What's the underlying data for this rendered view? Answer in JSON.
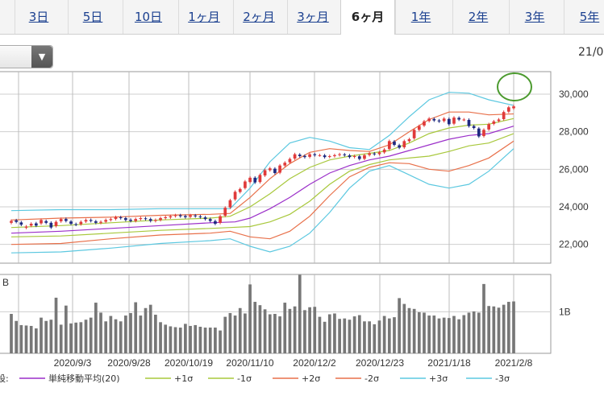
{
  "tabs": [
    {
      "label": "3日"
    },
    {
      "label": "5日"
    },
    {
      "label": "10日"
    },
    {
      "label": "1ヶ月"
    },
    {
      "label": "2ヶ月"
    },
    {
      "label": "3ヶ月"
    },
    {
      "label": "6ヶ月",
      "active": true
    },
    {
      "label": "1年"
    },
    {
      "label": "2年"
    },
    {
      "label": "3年"
    },
    {
      "label": "5年"
    }
  ],
  "date_partial": "21/0",
  "colors": {
    "candle_up": "#e03a3a",
    "candle_down": "#1f2a80",
    "sma": "#9b2fc9",
    "sigma1": "#a8c83c",
    "sigma2": "#e8704a",
    "sigma3": "#5cc8e0",
    "volume": "#777777",
    "annotation_circle": "#4b9a2e"
  },
  "chart_data": {
    "type": "candlestick",
    "price_axis": {
      "ticks": [
        "30,000",
        "28,000",
        "26,000",
        "24,000",
        "22,000"
      ],
      "ylim": [
        21000,
        31200
      ]
    },
    "volume_axis": {
      "title": "B",
      "ticks": [
        "1B"
      ],
      "ylim": [
        0,
        1.9
      ]
    },
    "x_tick_labels": [
      "2020/9/3",
      "2020/9/28",
      "2020/10/19",
      "2020/11/10",
      "2020/12/2",
      "2020/12/23",
      "2021/1/18",
      "2021/2/8"
    ],
    "close": [
      23250,
      23200,
      23050,
      22950,
      23100,
      23000,
      23300,
      23150,
      22900,
      23200,
      23350,
      23250,
      23100,
      23050,
      23200,
      23300,
      23250,
      23150,
      23200,
      23300,
      23350,
      23450,
      23400,
      23300,
      23250,
      23350,
      23400,
      23350,
      23250,
      23300,
      23400,
      23450,
      23500,
      23550,
      23500,
      23450,
      23550,
      23500,
      23450,
      23350,
      23250,
      23100,
      23500,
      23950,
      24350,
      24800,
      24950,
      25350,
      25550,
      25300,
      25700,
      25950,
      26050,
      25800,
      26200,
      26350,
      26550,
      26800,
      26700,
      26650,
      26800,
      26750,
      26750,
      26650,
      26700,
      26750,
      26800,
      26750,
      26650,
      26700,
      26550,
      26750,
      26850,
      26800,
      26900,
      27050,
      27500,
      27300,
      27150,
      27500,
      27600,
      28100,
      28300,
      28550,
      28700,
      28600,
      28550,
      28700,
      28400,
      28750,
      28650,
      28650,
      28300,
      28200,
      27750,
      28100,
      28400,
      28550,
      28650,
      29050,
      29300,
      29350
    ],
    "open_offsets": [
      -100,
      80,
      120,
      -60,
      -100,
      120,
      -180,
      90,
      250,
      -220,
      -120,
      100,
      120,
      30,
      -120,
      -80,
      50,
      80,
      -50,
      -90,
      -50,
      -90,
      40,
      100,
      60,
      -100,
      -50,
      40,
      100,
      -50,
      -100,
      -50,
      -60,
      -40,
      50,
      60,
      -80,
      40,
      40,
      90,
      100,
      140,
      -350,
      -420,
      -380,
      -400,
      -160,
      -350,
      -230,
      250,
      -380,
      -280,
      -100,
      230,
      -380,
      -150,
      -180,
      -230,
      80,
      60,
      -140,
      50,
      0,
      90,
      -40,
      -50,
      -40,
      40,
      90,
      -40,
      140,
      -190,
      -90,
      40,
      -90,
      -150,
      -420,
      180,
      130,
      -330,
      -100,
      -450,
      -200,
      -220,
      -130,
      80,
      50,
      -130,
      280,
      -320,
      90,
      -10,
      330,
      100,
      420,
      -330,
      -280,
      -130,
      -80,
      -380,
      -230,
      -100
    ],
    "volume": [
      0.95,
      0.78,
      0.68,
      0.67,
      0.66,
      0.6,
      0.86,
      0.78,
      0.81,
      1.34,
      0.69,
      1.15,
      0.72,
      0.74,
      0.75,
      0.81,
      0.86,
      1.22,
      0.98,
      0.77,
      0.9,
      0.82,
      0.77,
      0.91,
      0.97,
      1.23,
      0.91,
      1.09,
      1.17,
      0.93,
      0.75,
      0.69,
      0.65,
      0.63,
      0.62,
      0.71,
      0.66,
      0.68,
      0.64,
      0.62,
      0.62,
      0.62,
      0.55,
      0.88,
      0.97,
      0.91,
      1.09,
      0.96,
      1.66,
      1.24,
      1.16,
      1.06,
      0.94,
      0.95,
      0.89,
      1.22,
      1.07,
      1.13,
      1.89,
      1.04,
      1.11,
      1.12,
      0.88,
      0.76,
      0.94,
      0.96,
      0.83,
      0.84,
      0.81,
      0.89,
      0.92,
      0.77,
      0.77,
      0.7,
      0.79,
      0.9,
      0.84,
      0.87,
      1.33,
      1.19,
      1.09,
      1.07,
      0.99,
      0.98,
      0.91,
      0.91,
      0.84,
      0.86,
      0.85,
      0.9,
      0.82,
      0.92,
      0.98,
      1.01,
      0.98,
      1.67,
      1.14,
      1.13,
      1.1,
      1.17,
      1.24,
      1.25
    ],
    "bands": {
      "sma_20": [
        [
          0,
          22600
        ],
        [
          10,
          22700
        ],
        [
          20,
          22850
        ],
        [
          30,
          23000
        ],
        [
          40,
          23150
        ],
        [
          45,
          23200
        ],
        [
          48,
          23400
        ],
        [
          52,
          23900
        ],
        [
          56,
          24500
        ],
        [
          60,
          25200
        ],
        [
          64,
          25800
        ],
        [
          68,
          26200
        ],
        [
          72,
          26500
        ],
        [
          76,
          26700
        ],
        [
          80,
          27000
        ],
        [
          84,
          27300
        ],
        [
          88,
          27600
        ],
        [
          92,
          27800
        ],
        [
          96,
          27900
        ],
        [
          101,
          28300
        ]
      ],
      "plus_1s": [
        [
          0,
          22900
        ],
        [
          10,
          23000
        ],
        [
          20,
          23150
        ],
        [
          30,
          23300
        ],
        [
          40,
          23400
        ],
        [
          44,
          23500
        ],
        [
          48,
          24000
        ],
        [
          52,
          24700
        ],
        [
          56,
          25500
        ],
        [
          60,
          26100
        ],
        [
          64,
          26500
        ],
        [
          68,
          26700
        ],
        [
          72,
          26850
        ],
        [
          76,
          27000
        ],
        [
          80,
          27400
        ],
        [
          84,
          27900
        ],
        [
          88,
          28200
        ],
        [
          92,
          28350
        ],
        [
          96,
          28400
        ],
        [
          101,
          28700
        ]
      ],
      "minus_1s": [
        [
          0,
          22400
        ],
        [
          10,
          22450
        ],
        [
          20,
          22600
        ],
        [
          30,
          22750
        ],
        [
          40,
          22850
        ],
        [
          44,
          22900
        ],
        [
          48,
          22950
        ],
        [
          52,
          23200
        ],
        [
          56,
          23600
        ],
        [
          60,
          24300
        ],
        [
          64,
          25200
        ],
        [
          68,
          25900
        ],
        [
          72,
          26250
        ],
        [
          76,
          26500
        ],
        [
          80,
          26600
        ],
        [
          84,
          26700
        ],
        [
          88,
          26950
        ],
        [
          92,
          27250
        ],
        [
          96,
          27400
        ],
        [
          101,
          27900
        ]
      ],
      "plus_2s": [
        [
          0,
          23300
        ],
        [
          10,
          23400
        ],
        [
          20,
          23450
        ],
        [
          30,
          23550
        ],
        [
          40,
          23600
        ],
        [
          44,
          23650
        ],
        [
          48,
          24500
        ],
        [
          52,
          25500
        ],
        [
          56,
          26300
        ],
        [
          60,
          26900
        ],
        [
          64,
          27100
        ],
        [
          68,
          27000
        ],
        [
          72,
          26950
        ],
        [
          76,
          27300
        ],
        [
          80,
          28000
        ],
        [
          84,
          28650
        ],
        [
          88,
          29050
        ],
        [
          92,
          29050
        ],
        [
          96,
          28900
        ],
        [
          101,
          28950
        ]
      ],
      "minus_2s": [
        [
          0,
          22000
        ],
        [
          10,
          22050
        ],
        [
          20,
          22300
        ],
        [
          30,
          22500
        ],
        [
          40,
          22600
        ],
        [
          44,
          22700
        ],
        [
          48,
          22400
        ],
        [
          52,
          22300
        ],
        [
          56,
          22700
        ],
        [
          60,
          23500
        ],
        [
          64,
          24600
        ],
        [
          68,
          25600
        ],
        [
          72,
          26100
        ],
        [
          76,
          26350
        ],
        [
          80,
          26300
        ],
        [
          84,
          26000
        ],
        [
          88,
          25900
        ],
        [
          92,
          26200
        ],
        [
          96,
          26600
        ],
        [
          101,
          27500
        ]
      ],
      "plus_3s": [
        [
          0,
          23800
        ],
        [
          10,
          23850
        ],
        [
          20,
          23850
        ],
        [
          30,
          23900
        ],
        [
          40,
          23900
        ],
        [
          44,
          23900
        ],
        [
          48,
          25000
        ],
        [
          52,
          26400
        ],
        [
          56,
          27400
        ],
        [
          60,
          27700
        ],
        [
          64,
          27500
        ],
        [
          68,
          27150
        ],
        [
          72,
          27050
        ],
        [
          76,
          27800
        ],
        [
          80,
          28800
        ],
        [
          84,
          29700
        ],
        [
          88,
          30100
        ],
        [
          92,
          30050
        ],
        [
          96,
          29700
        ],
        [
          101,
          29400
        ]
      ],
      "minus_3s": [
        [
          0,
          21550
        ],
        [
          10,
          21600
        ],
        [
          20,
          21800
        ],
        [
          30,
          22050
        ],
        [
          40,
          22200
        ],
        [
          44,
          22300
        ],
        [
          48,
          21900
        ],
        [
          52,
          21600
        ],
        [
          56,
          21900
        ],
        [
          60,
          22600
        ],
        [
          64,
          23700
        ],
        [
          68,
          25000
        ],
        [
          72,
          25900
        ],
        [
          76,
          26200
        ],
        [
          80,
          25700
        ],
        [
          84,
          25200
        ],
        [
          88,
          25000
        ],
        [
          92,
          25200
        ],
        [
          96,
          25900
        ],
        [
          101,
          27100
        ]
      ]
    },
    "legend": [
      {
        "label": "単純移動平均(20)",
        "color_key": "sma"
      },
      {
        "label": "+1σ",
        "color_key": "sigma1"
      },
      {
        "label": "-1σ",
        "color_key": "sigma1"
      },
      {
        "label": "+2σ",
        "color_key": "sigma2"
      },
      {
        "label": "-2σ",
        "color_key": "sigma2"
      },
      {
        "label": "+3σ",
        "color_key": "sigma3"
      },
      {
        "label": "-3σ",
        "color_key": "sigma3"
      }
    ],
    "legend_prefix": "設:",
    "grid": true
  }
}
